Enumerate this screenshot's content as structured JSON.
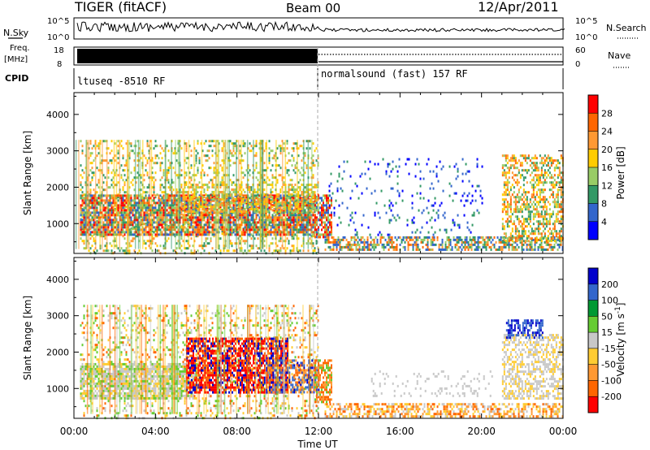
{
  "header": {
    "title": "TIGER (fitACF)",
    "beam": "Beam 00",
    "date": "12/Apr/2011"
  },
  "top_panels": {
    "nsky_label": "N.Sky",
    "nsky_ticks": [
      "10^5",
      "10^0"
    ],
    "nsearch_label": "N.Search",
    "freq_label_1": "Freq.",
    "freq_label_2": "[MHz]",
    "freq_ticks": [
      "18",
      "8"
    ],
    "nave_label": "Nave",
    "nave_ticks": [
      "60",
      "0"
    ],
    "cpid_label": "CPID",
    "cpid_segments": [
      {
        "label": "ltuseq -8510 RF",
        "start_hour": 0,
        "end_hour": 12
      },
      {
        "label": "normalsound (fast) 157 RF",
        "start_hour": 12,
        "end_hour": 24
      }
    ]
  },
  "chart_data": [
    {
      "type": "heatmap",
      "title": "Power",
      "ylabel": "Slant Range [km]",
      "xlabel": "",
      "xlim": [
        "00:00",
        "24:00"
      ],
      "ylim": [
        180,
        4600
      ],
      "yticks": [
        "1000",
        "2000",
        "3000",
        "4000"
      ],
      "colorbar_label": "Power [dB]",
      "colorbar_ticks": [
        "28",
        "24",
        "20",
        "16",
        "12",
        "8",
        "4"
      ],
      "colorbar_colors": [
        "#ff0000",
        "#ff6600",
        "#ff9933",
        "#ffcc00",
        "#99cc66",
        "#339966",
        "#3366cc",
        "#0000ff"
      ],
      "regions": [
        {
          "t0": 0.3,
          "t1": 12.0,
          "r0": 200,
          "r1": 3300,
          "density": 0.25,
          "colors": [
            "#99cc66",
            "#ffcc00",
            "#339966",
            "#ff9933"
          ]
        },
        {
          "t0": 0.3,
          "t1": 11.8,
          "r0": 700,
          "r1": 1800,
          "density": 0.8,
          "colors": [
            "#ff6600",
            "#ff9933",
            "#ff0000",
            "#99cc66",
            "#339966",
            "#3366cc"
          ]
        },
        {
          "t0": 5.0,
          "t1": 12.0,
          "r0": 1300,
          "r1": 2100,
          "density": 0.4,
          "colors": [
            "#99cc66",
            "#ff9933",
            "#ffcc00"
          ]
        },
        {
          "t0": 11.8,
          "t1": 12.6,
          "r0": 600,
          "r1": 1800,
          "density": 0.7,
          "colors": [
            "#ff0000",
            "#ff6600",
            "#99cc66",
            "#3366cc"
          ]
        },
        {
          "t0": 12.3,
          "t1": 24.0,
          "r0": 250,
          "r1": 650,
          "density": 0.6,
          "colors": [
            "#3366cc",
            "#339966",
            "#ff9933",
            "#ff6600",
            "#99cc66"
          ]
        },
        {
          "t0": 21.0,
          "t1": 24.0,
          "r0": 500,
          "r1": 2900,
          "density": 0.5,
          "colors": [
            "#ff6600",
            "#ff9933",
            "#99cc66",
            "#ffcc00",
            "#339966"
          ]
        },
        {
          "t0": 12.5,
          "t1": 20.0,
          "r0": 700,
          "r1": 2800,
          "density": 0.08,
          "colors": [
            "#3366cc",
            "#0000ff",
            "#339966"
          ]
        }
      ]
    },
    {
      "type": "heatmap",
      "title": "Velocity",
      "ylabel": "Slant Range [km]",
      "xlabel": "Time UT",
      "xlim": [
        "00:00",
        "24:00"
      ],
      "ylim": [
        180,
        4600
      ],
      "yticks": [
        "1000",
        "2000",
        "3000",
        "4000"
      ],
      "xticks": [
        "00:00",
        "04:00",
        "08:00",
        "12:00",
        "16:00",
        "20:00",
        "00:00"
      ],
      "colorbar_label": "Velocity [m s-1]",
      "colorbar_ticks": [
        "200",
        "100",
        "50",
        "15",
        "-15",
        "-50",
        "-100",
        "-200"
      ],
      "colorbar_colors": [
        "#0000cc",
        "#3366cc",
        "#009933",
        "#66cc33",
        "#c8c8c8",
        "#ffcc33",
        "#ff9933",
        "#ff6600",
        "#ff0000"
      ],
      "regions": [
        {
          "t0": 0.3,
          "t1": 12.0,
          "r0": 200,
          "r1": 3300,
          "density": 0.2,
          "colors": [
            "#c8c8c8",
            "#ffcc33",
            "#66cc33",
            "#ff6600"
          ]
        },
        {
          "t0": 0.3,
          "t1": 6.0,
          "r0": 700,
          "r1": 1700,
          "density": 0.8,
          "colors": [
            "#c8c8c8",
            "#c8c8c8",
            "#ffcc33",
            "#66cc33"
          ]
        },
        {
          "t0": 5.5,
          "t1": 10.5,
          "r0": 900,
          "r1": 2400,
          "density": 0.75,
          "colors": [
            "#ff0000",
            "#ff0000",
            "#ff6600",
            "#0000cc"
          ]
        },
        {
          "t0": 9.5,
          "t1": 12.0,
          "r0": 900,
          "r1": 1800,
          "density": 0.7,
          "colors": [
            "#ff6600",
            "#ff9933",
            "#0000cc",
            "#3366cc"
          ]
        },
        {
          "t0": 11.8,
          "t1": 12.6,
          "r0": 600,
          "r1": 1800,
          "density": 0.7,
          "colors": [
            "#ff9933",
            "#66cc33",
            "#ff6600"
          ]
        },
        {
          "t0": 12.3,
          "t1": 24.0,
          "r0": 250,
          "r1": 600,
          "density": 0.55,
          "colors": [
            "#ffcc33",
            "#ff9933",
            "#ff6600",
            "#c8c8c8"
          ]
        },
        {
          "t0": 21.0,
          "t1": 24.0,
          "r0": 700,
          "r1": 2500,
          "density": 0.5,
          "colors": [
            "#c8c8c8",
            "#c8c8c8",
            "#ffcc33"
          ]
        },
        {
          "t0": 21.2,
          "t1": 23.0,
          "r0": 2400,
          "r1": 2900,
          "density": 0.6,
          "colors": [
            "#0000cc",
            "#3366cc"
          ]
        },
        {
          "t0": 14.5,
          "t1": 20.5,
          "r0": 800,
          "r1": 1500,
          "density": 0.12,
          "colors": [
            "#c8c8c8"
          ]
        }
      ]
    }
  ]
}
